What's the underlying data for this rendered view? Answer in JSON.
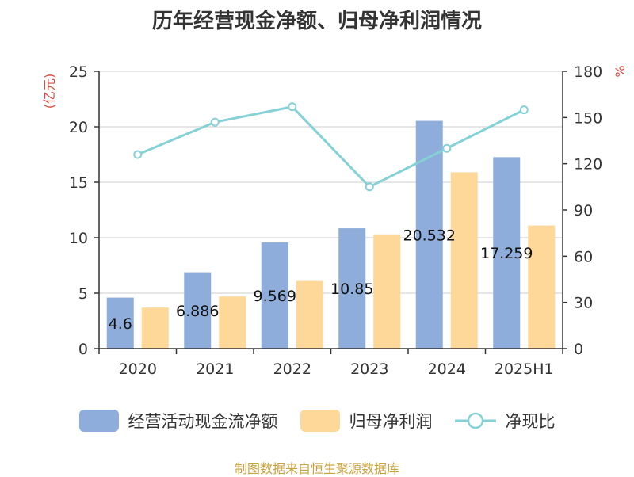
{
  "chart_data": {
    "type": "bar",
    "title": "历年经营现金净额、归母净利润情况",
    "categories": [
      "2020",
      "2021",
      "2022",
      "2023",
      "2024",
      "2025H1"
    ],
    "y_left": {
      "unit": "(亿元)",
      "range": [
        0,
        25
      ],
      "ticks": [
        "0",
        "5",
        "10",
        "15",
        "20",
        "25"
      ]
    },
    "y_right": {
      "unit": "%",
      "range": [
        0,
        180
      ],
      "ticks": [
        "0",
        "30",
        "60",
        "90",
        "120",
        "150",
        "180"
      ]
    },
    "grid": true,
    "legend_position": "bottom",
    "series": [
      {
        "name": "经营活动现金流净额",
        "type": "bar",
        "axis": "left",
        "color": "#8eaddb",
        "values": [
          4.6,
          6.886,
          9.569,
          10.85,
          20.532,
          17.259
        ],
        "labels": [
          "4.6",
          "6.886",
          "9.569",
          "10.85",
          "20.532",
          "17.259"
        ]
      },
      {
        "name": "归母净利润",
        "type": "bar",
        "axis": "left",
        "color": "#fdd899",
        "values": [
          3.7,
          4.7,
          6.1,
          10.3,
          15.9,
          11.1
        ]
      },
      {
        "name": "净现比",
        "type": "line",
        "axis": "right",
        "color": "#85d1d6",
        "values": [
          126,
          147,
          157,
          105,
          130,
          155
        ]
      }
    ]
  },
  "source": "制图数据来自恒生聚源数据库"
}
